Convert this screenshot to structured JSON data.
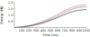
{
  "chart_data": {
    "type": "line",
    "xlabel": "Time (ms)",
    "ylabel": "Energy (MJ)",
    "x": [
      0,
      50,
      100,
      150,
      200,
      250,
      300,
      350,
      400,
      450,
      500,
      520,
      540,
      560,
      580,
      600,
      620,
      640,
      660,
      680,
      700,
      730,
      760,
      790,
      820,
      850,
      880,
      910,
      940,
      970,
      1000
    ],
    "series": [
      {
        "color": "#ff7777",
        "values": [
          0,
          0.02,
          0.05,
          0.1,
          0.15,
          0.22,
          0.3,
          0.4,
          0.5,
          0.62,
          0.74,
          0.8,
          0.86,
          0.92,
          0.98,
          1.04,
          1.1,
          1.16,
          1.22,
          1.28,
          1.35,
          1.42,
          1.5,
          1.57,
          1.63,
          1.68,
          1.72,
          1.75,
          1.77,
          1.79,
          1.8
        ]
      },
      {
        "color": "#6699bb",
        "values": [
          0,
          0.02,
          0.04,
          0.08,
          0.13,
          0.19,
          0.26,
          0.34,
          0.43,
          0.53,
          0.64,
          0.69,
          0.74,
          0.8,
          0.85,
          0.91,
          0.97,
          1.03,
          1.09,
          1.15,
          1.21,
          1.28,
          1.36,
          1.43,
          1.49,
          1.54,
          1.58,
          1.6,
          1.62,
          1.63,
          1.64
        ]
      },
      {
        "color": "#444444",
        "values": [
          0,
          0.01,
          0.03,
          0.07,
          0.11,
          0.16,
          0.22,
          0.29,
          0.37,
          0.46,
          0.56,
          0.61,
          0.65,
          0.7,
          0.74,
          0.79,
          0.84,
          0.89,
          0.94,
          0.99,
          1.04,
          1.1,
          1.17,
          1.23,
          1.28,
          1.32,
          1.35,
          1.38,
          1.4,
          1.41,
          1.42
        ]
      }
    ],
    "xlim": [
      0,
      1000
    ],
    "ylim": [
      0,
      2.0
    ],
    "xticks": [
      100,
      200,
      300,
      400,
      500,
      600,
      700,
      800,
      900,
      1000
    ],
    "yticks": [
      0.5,
      {
        "value": 1.0,
        "label": "1.0"
      },
      1.5,
      {
        "value": 2.0,
        "label": "2.0"
      }
    ],
    "grid": false
  }
}
